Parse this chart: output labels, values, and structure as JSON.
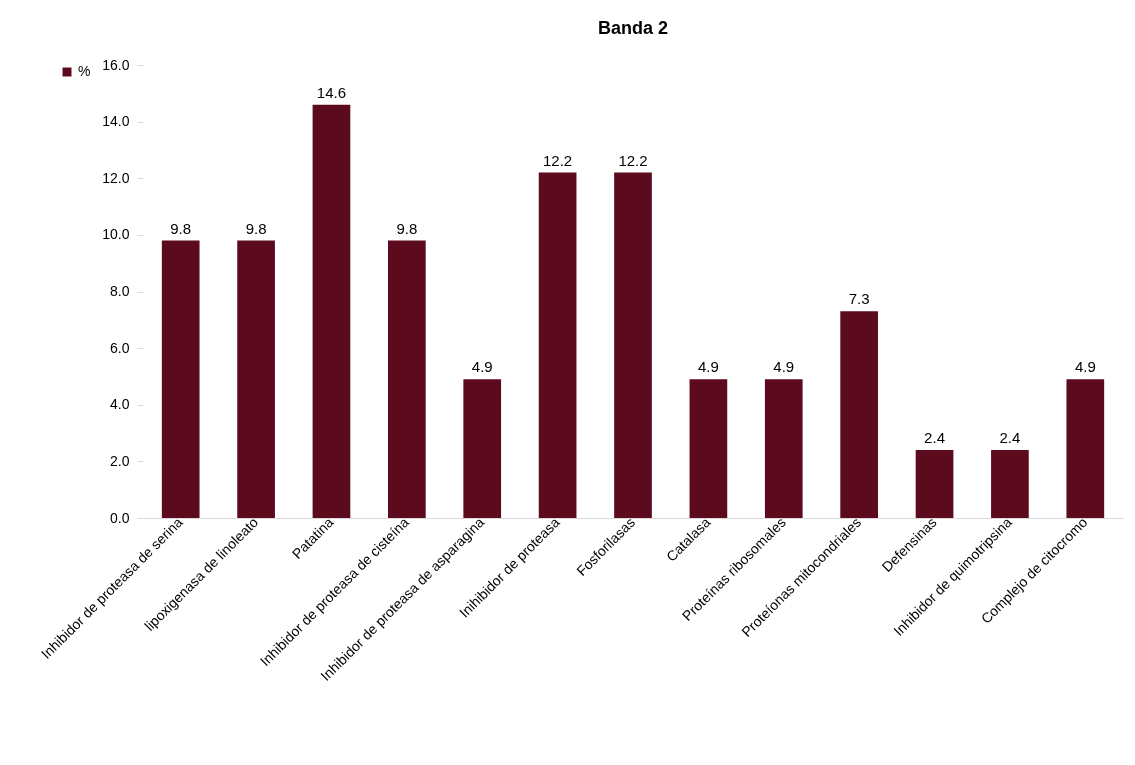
{
  "chart_data": {
    "type": "bar",
    "title": "Banda 2",
    "categories": [
      "Inhibidor de proteasa de serina",
      "lipoxigenasa de linoleato",
      "Patatina",
      "Inhibidor de proteasa de cisteína",
      "Inhibidor de  proteasa de asparagina",
      "Inihibidor de proteasa",
      "Fosforilasas",
      "Catalasa",
      "Proteínas ribosomales",
      "Proteíonas mitocondriales",
      "Defensinas",
      "Inhibidor de quimotripsina",
      "Complejo de citocromo"
    ],
    "series": [
      {
        "name": "%",
        "color": "#5c0a1e",
        "values": [
          9.8,
          9.8,
          14.6,
          9.8,
          4.9,
          12.2,
          12.2,
          4.9,
          4.9,
          7.3,
          2.4,
          2.4,
          4.9
        ]
      }
    ],
    "ylim": [
      0,
      16
    ],
    "yticks": [
      {
        "value": 0,
        "label": "0.0"
      },
      {
        "value": 2,
        "label": "2.0"
      },
      {
        "value": 4,
        "label": "4.0"
      },
      {
        "value": 6,
        "label": "6.0"
      },
      {
        "value": 8,
        "label": "8.0"
      },
      {
        "value": 10,
        "label": "10.0"
      },
      {
        "value": 12,
        "label": "12.0"
      },
      {
        "value": 14,
        "label": "14.0"
      },
      {
        "value": 16,
        "label": "16.0"
      }
    ],
    "data_labels": true,
    "legend": "left",
    "grid": false
  }
}
